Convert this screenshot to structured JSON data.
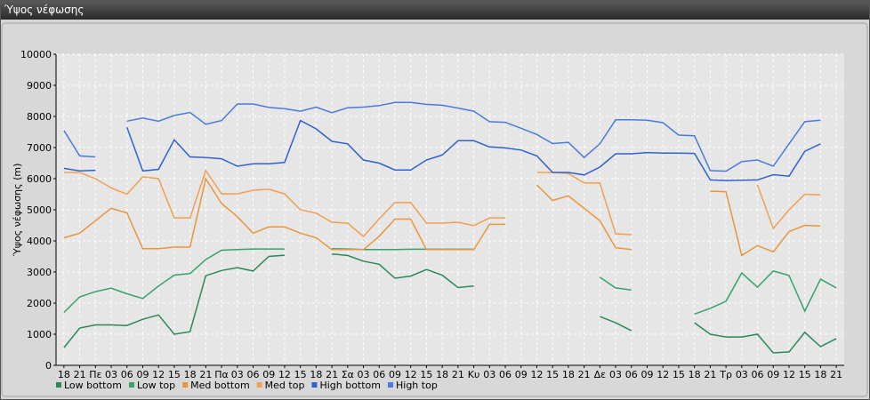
{
  "chart_data": {
    "type": "line",
    "title": "Ύψος νέφωσης",
    "y_label": "Ύψος νέφωσης (m)",
    "categories": [
      "18",
      "21",
      "Πε",
      "03",
      "06",
      "09",
      "12",
      "15",
      "18",
      "21",
      "Πα",
      "03",
      "06",
      "09",
      "12",
      "15",
      "18",
      "21",
      "Σα",
      "03",
      "06",
      "09",
      "12",
      "15",
      "18",
      "21",
      "Κυ",
      "03",
      "06",
      "09",
      "12",
      "15",
      "18",
      "21",
      "Δε",
      "03",
      "06",
      "09",
      "12",
      "15",
      "18",
      "21",
      "Τρ",
      "03",
      "06",
      "09",
      "12",
      "15",
      "18",
      "21"
    ],
    "ylim": [
      0,
      10000
    ],
    "yticks": [
      0,
      1000,
      2000,
      3000,
      4000,
      5000,
      6000,
      7000,
      8000,
      9000,
      10000
    ],
    "grid": true,
    "legend": "bottom-left",
    "series": [
      {
        "name": "Low bottom",
        "color": "#2a8a55",
        "values": [
          570,
          1200,
          1300,
          1300,
          1280,
          1480,
          1620,
          1000,
          1080,
          2880,
          3050,
          3140,
          3030,
          3500,
          3540,
          null,
          null,
          3580,
          3530,
          3350,
          3250,
          2800,
          2870,
          3080,
          2900,
          2500,
          2550,
          null,
          null,
          null,
          null,
          null,
          null,
          null,
          1570,
          1370,
          1110,
          null,
          null,
          null,
          1370,
          1000,
          910,
          910,
          1000,
          400,
          430,
          1060,
          600,
          860
        ]
      },
      {
        "name": "Low top",
        "color": "#35a36a",
        "values": [
          1700,
          2200,
          2370,
          2480,
          2300,
          2150,
          2550,
          2900,
          2950,
          3400,
          3700,
          3720,
          3740,
          3740,
          3740,
          null,
          null,
          3750,
          3740,
          3720,
          3720,
          3720,
          3730,
          3730,
          3730,
          3730,
          3730,
          null,
          null,
          null,
          null,
          null,
          null,
          null,
          2830,
          2490,
          2420,
          null,
          null,
          null,
          1650,
          1830,
          2060,
          2970,
          2510,
          3030,
          2890,
          1740,
          2770,
          2490
        ]
      },
      {
        "name": "Med bottom",
        "color": "#e8963c",
        "values": [
          4100,
          4250,
          4650,
          5050,
          4900,
          3750,
          3750,
          3800,
          3800,
          6000,
          5200,
          4780,
          4250,
          4450,
          4450,
          4250,
          4100,
          3720,
          3720,
          3720,
          4150,
          4700,
          4700,
          3720,
          3720,
          3720,
          3720,
          4530,
          4530,
          null,
          5800,
          5300,
          5450,
          5050,
          4650,
          3780,
          3720,
          null,
          null,
          null,
          null,
          5600,
          5580,
          3530,
          3850,
          3650,
          4300,
          4500,
          4480,
          null
        ]
      },
      {
        "name": "Med top",
        "color": "#f0a050",
        "values": [
          6200,
          6200,
          6000,
          5700,
          5500,
          6060,
          6000,
          4740,
          4740,
          6260,
          5510,
          5510,
          5630,
          5660,
          5510,
          5000,
          4890,
          4600,
          4570,
          4140,
          4710,
          5230,
          5230,
          4570,
          4570,
          4600,
          4490,
          4740,
          4740,
          null,
          6200,
          6200,
          6170,
          5860,
          5860,
          4230,
          4200,
          null,
          null,
          null,
          null,
          null,
          null,
          null,
          5800,
          4400,
          5000,
          5500,
          5480,
          null
        ]
      },
      {
        "name": "High bottom",
        "color": "#2f62d0",
        "values": [
          6330,
          6250,
          6270,
          null,
          7650,
          6250,
          6300,
          7250,
          6700,
          6680,
          6640,
          6400,
          6480,
          6480,
          6520,
          7870,
          7600,
          7200,
          7120,
          6600,
          6500,
          6280,
          6280,
          6600,
          6760,
          7220,
          7220,
          7020,
          6990,
          6920,
          6730,
          6200,
          6200,
          6120,
          6370,
          6800,
          6800,
          6840,
          6820,
          6820,
          6810,
          5960,
          5940,
          5950,
          5960,
          6130,
          6080,
          6880,
          7120,
          null
        ]
      },
      {
        "name": "High top",
        "color": "#4a7ae0",
        "values": [
          7550,
          6730,
          6700,
          null,
          7850,
          7950,
          7850,
          8030,
          8130,
          7750,
          7870,
          8400,
          8400,
          8290,
          8250,
          8170,
          8300,
          8120,
          8280,
          8300,
          8350,
          8450,
          8450,
          8390,
          8360,
          8270,
          8170,
          7830,
          7810,
          7620,
          7420,
          7130,
          7170,
          6680,
          7120,
          7890,
          7890,
          7880,
          7800,
          7400,
          7380,
          6260,
          6240,
          6550,
          6600,
          6400,
          7120,
          7830,
          7880,
          null
        ]
      }
    ]
  }
}
